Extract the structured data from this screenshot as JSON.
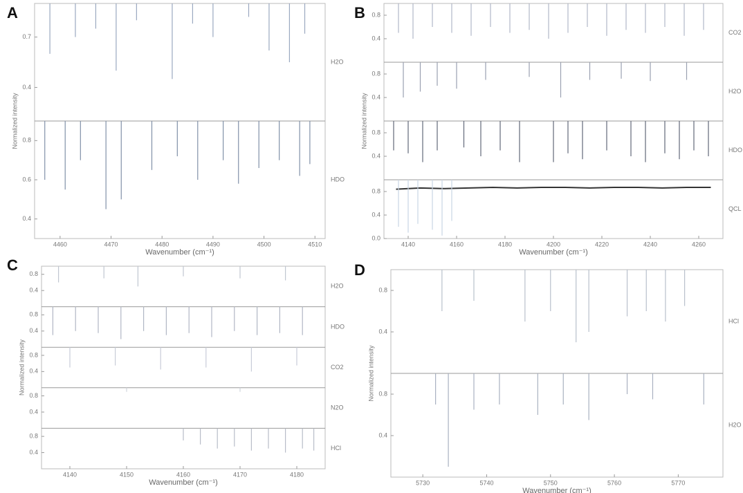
{
  "chart_data": [
    {
      "type": "stick",
      "panel": "A",
      "xlabel": "Wavenumber (cm⁻¹)",
      "ylabel": "Normalized intensity",
      "xlim": [
        4455,
        4512
      ],
      "xticks": [
        4460,
        4470,
        4480,
        4490,
        4500,
        4510
      ],
      "subplots": [
        {
          "name": "H2O",
          "ylim": [
            0.2,
            0.9
          ],
          "yticks": [
            0.4,
            0.7
          ],
          "series": [
            {
              "color": "#9aa8c0",
              "x": [
                4458,
                4463,
                4467,
                4471,
                4475,
                4482,
                4486,
                4490,
                4497,
                4501,
                4505,
                4508
              ],
              "values": [
                0.6,
                0.7,
                0.75,
                0.5,
                0.8,
                0.45,
                0.78,
                0.7,
                0.82,
                0.62,
                0.55,
                0.72
              ]
            }
          ]
        },
        {
          "name": "HDO",
          "ylim": [
            0.3,
            0.9
          ],
          "yticks": [
            0.4,
            0.6,
            0.8
          ],
          "series": [
            {
              "color": "#8090a8",
              "x": [
                4457,
                4461,
                4464,
                4469,
                4472,
                4478,
                4483,
                4487,
                4492,
                4495,
                4499,
                4503,
                4507,
                4509
              ],
              "values": [
                0.6,
                0.55,
                0.7,
                0.45,
                0.5,
                0.65,
                0.72,
                0.6,
                0.7,
                0.58,
                0.66,
                0.7,
                0.62,
                0.68
              ]
            }
          ]
        }
      ]
    },
    {
      "type": "stick",
      "panel": "B",
      "xlabel": "Wavenumber (cm⁻¹)",
      "ylabel": "Normalized intensity",
      "xlim": [
        4130,
        4270
      ],
      "xticks": [
        4140,
        4160,
        4180,
        4200,
        4220,
        4240,
        4260
      ],
      "subplots": [
        {
          "name": "CO2",
          "ylim": [
            0,
            1
          ],
          "yticks": [
            0.4,
            0.8
          ],
          "series": [
            {
              "color": "#b0b8c8",
              "x": [
                4136,
                4142,
                4150,
                4158,
                4166,
                4174,
                4182,
                4190,
                4198,
                4206,
                4214,
                4222,
                4230,
                4238,
                4246,
                4254,
                4262
              ],
              "values": [
                0.5,
                0.4,
                0.6,
                0.5,
                0.45,
                0.6,
                0.5,
                0.55,
                0.4,
                0.5,
                0.6,
                0.45,
                0.55,
                0.5,
                0.6,
                0.45,
                0.55
              ]
            }
          ]
        },
        {
          "name": "H2O",
          "ylim": [
            0,
            1
          ],
          "yticks": [
            0.4,
            0.8
          ],
          "series": [
            {
              "color": "#9aa0b0",
              "x": [
                4138,
                4145,
                4152,
                4160,
                4172,
                4190,
                4203,
                4215,
                4228,
                4240,
                4255
              ],
              "values": [
                0.4,
                0.5,
                0.6,
                0.55,
                0.7,
                0.75,
                0.4,
                0.7,
                0.72,
                0.68,
                0.7
              ]
            }
          ]
        },
        {
          "name": "HDO",
          "ylim": [
            0,
            1
          ],
          "yticks": [
            0.4,
            0.8
          ],
          "series": [
            {
              "color": "#606878",
              "x": [
                4134,
                4140,
                4146,
                4152,
                4163,
                4170,
                4178,
                4186,
                4200,
                4206,
                4212,
                4222,
                4232,
                4238,
                4246,
                4252,
                4258,
                4264
              ],
              "values": [
                0.5,
                0.45,
                0.3,
                0.5,
                0.55,
                0.4,
                0.5,
                0.3,
                0.3,
                0.45,
                0.35,
                0.5,
                0.4,
                0.3,
                0.45,
                0.35,
                0.5,
                0.4
              ]
            }
          ]
        },
        {
          "name": "QCL",
          "ylim": [
            0,
            1
          ],
          "yticks": [
            {
              "value": 0,
              "label": "0.0"
            },
            0.4,
            0.8
          ],
          "series": [
            {
              "type": "line",
              "color": "#333",
              "x": [
                4135,
                4145,
                4155,
                4165,
                4175,
                4185,
                4195,
                4205,
                4215,
                4225,
                4235,
                4245,
                4255,
                4265
              ],
              "values": [
                0.84,
                0.86,
                0.85,
                0.86,
                0.87,
                0.86,
                0.87,
                0.87,
                0.86,
                0.87,
                0.87,
                0.86,
                0.87,
                0.87
              ]
            },
            {
              "color": "#c8d4e4",
              "x": [
                4136,
                4140,
                4144,
                4150,
                4154,
                4158
              ],
              "values": [
                0.2,
                0.1,
                0.25,
                0.15,
                0.05,
                0.3
              ]
            }
          ]
        }
      ]
    },
    {
      "type": "stick",
      "panel": "C",
      "xlabel": "Wavenumber (cm⁻¹)",
      "ylabel": "Normalized intensity",
      "xlim": [
        4135,
        4185
      ],
      "xticks": [
        4140,
        4150,
        4160,
        4170,
        4180
      ],
      "subplots": [
        {
          "name": "H2O",
          "ylim": [
            0,
            1
          ],
          "yticks": [
            0.4,
            0.8
          ],
          "series": [
            {
              "color": "#c0c6d0",
              "x": [
                4138,
                4146,
                4152,
                4160,
                4170,
                4178
              ],
              "values": [
                0.6,
                0.7,
                0.5,
                0.75,
                0.7,
                0.65
              ]
            }
          ]
        },
        {
          "name": "HDO",
          "ylim": [
            0,
            1
          ],
          "yticks": [
            0.4,
            0.8
          ],
          "series": [
            {
              "color": "#b0b6c4",
              "x": [
                4137,
                4141,
                4145,
                4149,
                4153,
                4157,
                4161,
                4165,
                4169,
                4173,
                4177,
                4181
              ],
              "values": [
                0.3,
                0.4,
                0.35,
                0.2,
                0.4,
                0.3,
                0.35,
                0.25,
                0.4,
                0.3,
                0.35,
                0.3
              ]
            }
          ]
        },
        {
          "name": "CO2",
          "ylim": [
            0,
            1
          ],
          "yticks": [
            0.4,
            0.8
          ],
          "series": [
            {
              "color": "#c8ccd8",
              "x": [
                4140,
                4148,
                4156,
                4164,
                4172,
                4180
              ],
              "values": [
                0.5,
                0.55,
                0.45,
                0.5,
                0.4,
                0.55
              ]
            }
          ]
        },
        {
          "name": "N2O",
          "ylim": [
            0,
            1
          ],
          "yticks": [
            0.4,
            0.8
          ],
          "series": [
            {
              "color": "#d0d4dc",
              "x": [
                4150,
                4170
              ],
              "values": [
                0.9,
                0.9
              ]
            }
          ]
        },
        {
          "name": "HCl",
          "ylim": [
            0,
            1
          ],
          "yticks": [
            0.4,
            0.8
          ],
          "series": [
            {
              "color": "#b8bcc8",
              "x": [
                4160,
                4163,
                4166,
                4169,
                4172,
                4175,
                4178,
                4181,
                4183
              ],
              "values": [
                0.7,
                0.6,
                0.5,
                0.55,
                0.45,
                0.5,
                0.4,
                0.5,
                0.45
              ]
            }
          ]
        }
      ]
    },
    {
      "type": "stick",
      "panel": "D",
      "xlabel": "Wavenumber (cm⁻¹)",
      "ylabel": "Normalized intensity",
      "xlim": [
        5725,
        5777
      ],
      "xticks": [
        5730,
        5740,
        5750,
        5760,
        5770
      ],
      "subplots": [
        {
          "name": "HCl",
          "ylim": [
            0,
            1
          ],
          "yticks": [
            0.4,
            0.8
          ],
          "series": [
            {
              "color": "#b8c0cc",
              "x": [
                5733,
                5738,
                5746,
                5750,
                5754,
                5756,
                5762,
                5765,
                5768,
                5771
              ],
              "values": [
                0.6,
                0.7,
                0.5,
                0.6,
                0.3,
                0.4,
                0.55,
                0.6,
                0.5,
                0.65
              ]
            }
          ]
        },
        {
          "name": "H2O",
          "ylim": [
            0,
            1
          ],
          "yticks": [
            0.4,
            0.8
          ],
          "series": [
            {
              "color": "#a8b0c0",
              "x": [
                5732,
                5734,
                5738,
                5742,
                5748,
                5752,
                5756,
                5762,
                5766,
                5774
              ],
              "values": [
                0.7,
                0.1,
                0.65,
                0.7,
                0.6,
                0.7,
                0.55,
                0.8,
                0.75,
                0.7
              ]
            }
          ]
        }
      ]
    }
  ]
}
